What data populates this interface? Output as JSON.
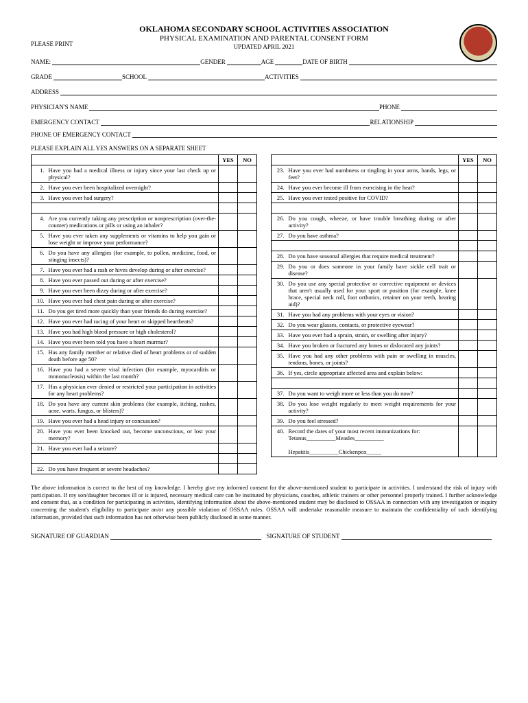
{
  "header": {
    "title": "OKLAHOMA SECONDARY SCHOOL ACTIVITIES ASSOCIATION",
    "subtitle": "PHYSICAL EXAMINATION AND PARENTAL CONSENT FORM",
    "please_print": "PLEASE PRINT",
    "updated": "UPDATED APRIL 2021"
  },
  "fields": {
    "name": "NAME:",
    "gender": "GENDER",
    "age": "AGE",
    "dob": "DATE OF BIRTH",
    "grade": "GRADE",
    "school": "SCHOOL",
    "activities": "ACTIVITIES",
    "address": "ADDRESS",
    "physician": "PHYSICIAN'S NAME",
    "phone": "PHONE",
    "emergency": "EMERGENCY CONTACT",
    "relationship": "RELATIONSHIP",
    "emergency_phone": "PHONE OF EMERGENCY CONTACT",
    "instruction": "PLEASE EXPLAIN ALL YES ANSWERS ON A SEPARATE SHEET"
  },
  "columns": {
    "yes": "YES",
    "no": "NO"
  },
  "left_q": [
    {
      "n": "1.",
      "t": "Have you had a medical illness or injury since your last check up or physical?"
    },
    {
      "n": "2.",
      "t": "Have you ever been hospitalized overnight?"
    },
    {
      "n": "3.",
      "t": "Have you ever had surgery?"
    },
    {
      "n": "",
      "t": ""
    },
    {
      "n": "4.",
      "t": "Are you currently taking any prescription or nonprescription (over-the-counter) medications or pills or using an inhaler?"
    },
    {
      "n": "5.",
      "t": "Have you ever taken any supplements or vitamins to help you gain or lose weight or improve your performance?"
    },
    {
      "n": "6.",
      "t": "Do you have any allergies (for example, to pollen, medicine, food, or stinging insects)?"
    },
    {
      "n": "7.",
      "t": "Have you ever had a rash or hives develop during or after exercise?"
    },
    {
      "n": "8.",
      "t": "Have you ever passed out during or after exercise?"
    },
    {
      "n": "9.",
      "t": "Have you ever been dizzy during or after exercise?"
    },
    {
      "n": "10.",
      "t": "Have you ever had chest pain during or after exercise?"
    },
    {
      "n": "11.",
      "t": "Do you get tired more quickly than your friends do during exercise?"
    },
    {
      "n": "12.",
      "t": "Have you ever had racing of your heart or skipped heartbeats?"
    },
    {
      "n": "13.",
      "t": "Have you had high blood pressure or high cholesterol?"
    },
    {
      "n": "14.",
      "t": "Have you ever been told you have a heart murmur?"
    },
    {
      "n": "15.",
      "t": "Has any family member or relative died of heart problems or of sudden death before age 50?"
    },
    {
      "n": "16.",
      "t": "Have you had a severe viral infection (for example, myocarditis or mononucleosis) within the last month?"
    },
    {
      "n": "17.",
      "t": "Has a physician ever denied or restricted your participation in activities for any heart problems?"
    },
    {
      "n": "18.",
      "t": "Do you have any current skin problems (for example, itching, rashes, acne, warts, fungus, or blisters)?"
    },
    {
      "n": "19.",
      "t": "Have you ever had a head injury or concussion?"
    },
    {
      "n": "20.",
      "t": "Have you ever been knocked out, become unconscious, or lost your memory?"
    },
    {
      "n": "21.",
      "t": "Have you ever had a seizure?"
    },
    {
      "n": "",
      "t": ""
    },
    {
      "n": "22.",
      "t": "Do you have frequent or severe headaches?"
    }
  ],
  "right_q": [
    {
      "n": "23.",
      "t": "Have you ever had numbness or tingling in your arms, hands, legs, or feet?"
    },
    {
      "n": "24.",
      "t": "Have you ever become ill from exercising in the heat?"
    },
    {
      "n": "25.",
      "t": "Have you ever tested positive for COVID?"
    },
    {
      "n": "",
      "t": ""
    },
    {
      "n": "26.",
      "t": "Do you cough, wheeze, or have trouble breathing during or after activity?"
    },
    {
      "n": "27.",
      "t": "Do you have asthma?"
    },
    {
      "n": "",
      "t": ""
    },
    {
      "n": "28.",
      "t": "Do you have seasonal allergies that require medical treatment?"
    },
    {
      "n": "29.",
      "t": "Do you or does someone in your family have sickle cell trait or disease?"
    },
    {
      "n": "30.",
      "t": "Do you use any special protective or corrective equipment or devices that aren't usually used for your sport or position (for example, knee brace, special neck roll, foot orthotics, retainer on your teeth, hearing aid)?"
    },
    {
      "n": "31.",
      "t": "Have you had any problems with your eyes or vision?"
    },
    {
      "n": "32.",
      "t": "Do you wear glasses, contacts, or protective eyewear?"
    },
    {
      "n": "33.",
      "t": "Have you ever had a sprain, strain, or swelling after injury?"
    },
    {
      "n": "34.",
      "t": "Have you broken or fractured any bones or dislocated any joints?"
    },
    {
      "n": "35.",
      "t": "Have you had any other problems with pain or swelling in muscles, tendons, bones, or joints?"
    },
    {
      "n": "36.",
      "t": "If yes, circle appropriate affected area and explain below:"
    },
    {
      "n": "",
      "t": ""
    },
    {
      "n": "37.",
      "t": "Do you want to weigh more or less than you do now?"
    },
    {
      "n": "38.",
      "t": "Do you lose weight regularly to meet weight requirements for your activity?"
    },
    {
      "n": "39.",
      "t": "Do you feel stressed?"
    },
    {
      "n": "40.",
      "t": "Record the dates of your most recent immunizations for:\nTetanus__________Measles__________\n\nHepatitis__________Chickenpox_____"
    }
  ],
  "disclaimer": "The above information is correct to the best of my knowledge. I hereby give my informed consent for the above-mentioned student to participate in activities. I understand the risk of injury with participation. If my son/daughter becomes ill or is injured, necessary medical care can be instituted by physicians, coaches, athletic trainers or other personnel properly trained. I further acknowledge and consent that, as a condition for participating in activities, identifying information about the above-mentioned student may be disclosed to OSSAA in connection with any investigation or inquiry concerning the student's eligibility to participate an/or any possible violation of OSSAA rules. OSSAA will undertake reasonable measure to maintain the confidentiality of such identifying information, provided that such information has not otherwise been publicly disclosed in some manner.",
  "signatures": {
    "guardian": "SIGNATURE OF GUARDIAN",
    "student": "SIGNATURE OF STUDENT"
  }
}
